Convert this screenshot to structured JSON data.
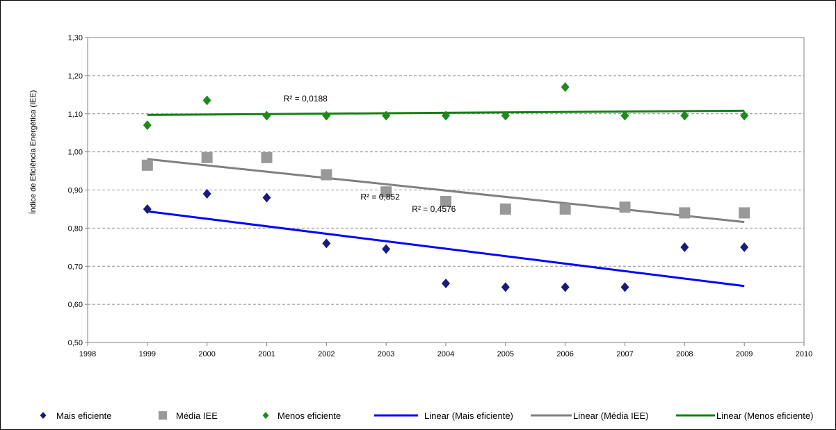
{
  "chart_data": {
    "type": "scatter",
    "ylabel": "Índice de Eficiência Energética  (IEE)",
    "xlabel": "",
    "xlim": [
      1998,
      2010
    ],
    "ylim": [
      0.5,
      1.3
    ],
    "x_ticks": [
      "1998",
      "1999",
      "2000",
      "2001",
      "2002",
      "2003",
      "2004",
      "2005",
      "2006",
      "2007",
      "2008",
      "2009",
      "2010"
    ],
    "y_ticks": [
      "0,50",
      "0,60",
      "0,70",
      "0,80",
      "0,90",
      "1,00",
      "1,10",
      "1,20",
      "1,30"
    ],
    "grid": "horizontal dashed",
    "legend_position": "bottom",
    "series": [
      {
        "name": "Mais eficiente",
        "marker": "diamond",
        "color": "#1a1a7e",
        "x": [
          1999,
          2000,
          2001,
          2002,
          2003,
          2004,
          2005,
          2006,
          2007,
          2008,
          2009
        ],
        "values": [
          0.85,
          0.89,
          0.88,
          0.76,
          0.745,
          0.655,
          0.645,
          0.645,
          0.645,
          0.75,
          0.75
        ]
      },
      {
        "name": "Média IEE",
        "marker": "square",
        "color": "#999999",
        "x": [
          1999,
          2000,
          2001,
          2002,
          2003,
          2004,
          2005,
          2006,
          2007,
          2008,
          2009
        ],
        "values": [
          0.965,
          0.985,
          0.985,
          0.94,
          0.895,
          0.87,
          0.85,
          0.85,
          0.855,
          0.84,
          0.84
        ]
      },
      {
        "name": "Menos eficiente",
        "marker": "diamond",
        "color": "#1e8a1e",
        "x": [
          1999,
          2000,
          2001,
          2002,
          2003,
          2004,
          2005,
          2006,
          2007,
          2008,
          2009
        ],
        "values": [
          1.07,
          1.135,
          1.095,
          1.095,
          1.095,
          1.095,
          1.095,
          1.17,
          1.095,
          1.095,
          1.095
        ]
      }
    ],
    "trendlines": [
      {
        "name": "Linear (Mais  eficiente)",
        "color": "#0000ff",
        "x": [
          1999,
          2009
        ],
        "values": [
          0.844,
          0.648
        ],
        "r2": "R² = 0,4576"
      },
      {
        "name": "Linear (Média  IEE)",
        "color": "#808080",
        "x": [
          1999,
          2009
        ],
        "values": [
          0.981,
          0.816
        ],
        "r2": "R² = 0,852"
      },
      {
        "name": "Linear (Menos  eficiente)",
        "color": "#138013",
        "x": [
          1999,
          2009
        ],
        "values": [
          1.097,
          1.108
        ],
        "r2": "R² = 0,0188"
      }
    ]
  }
}
